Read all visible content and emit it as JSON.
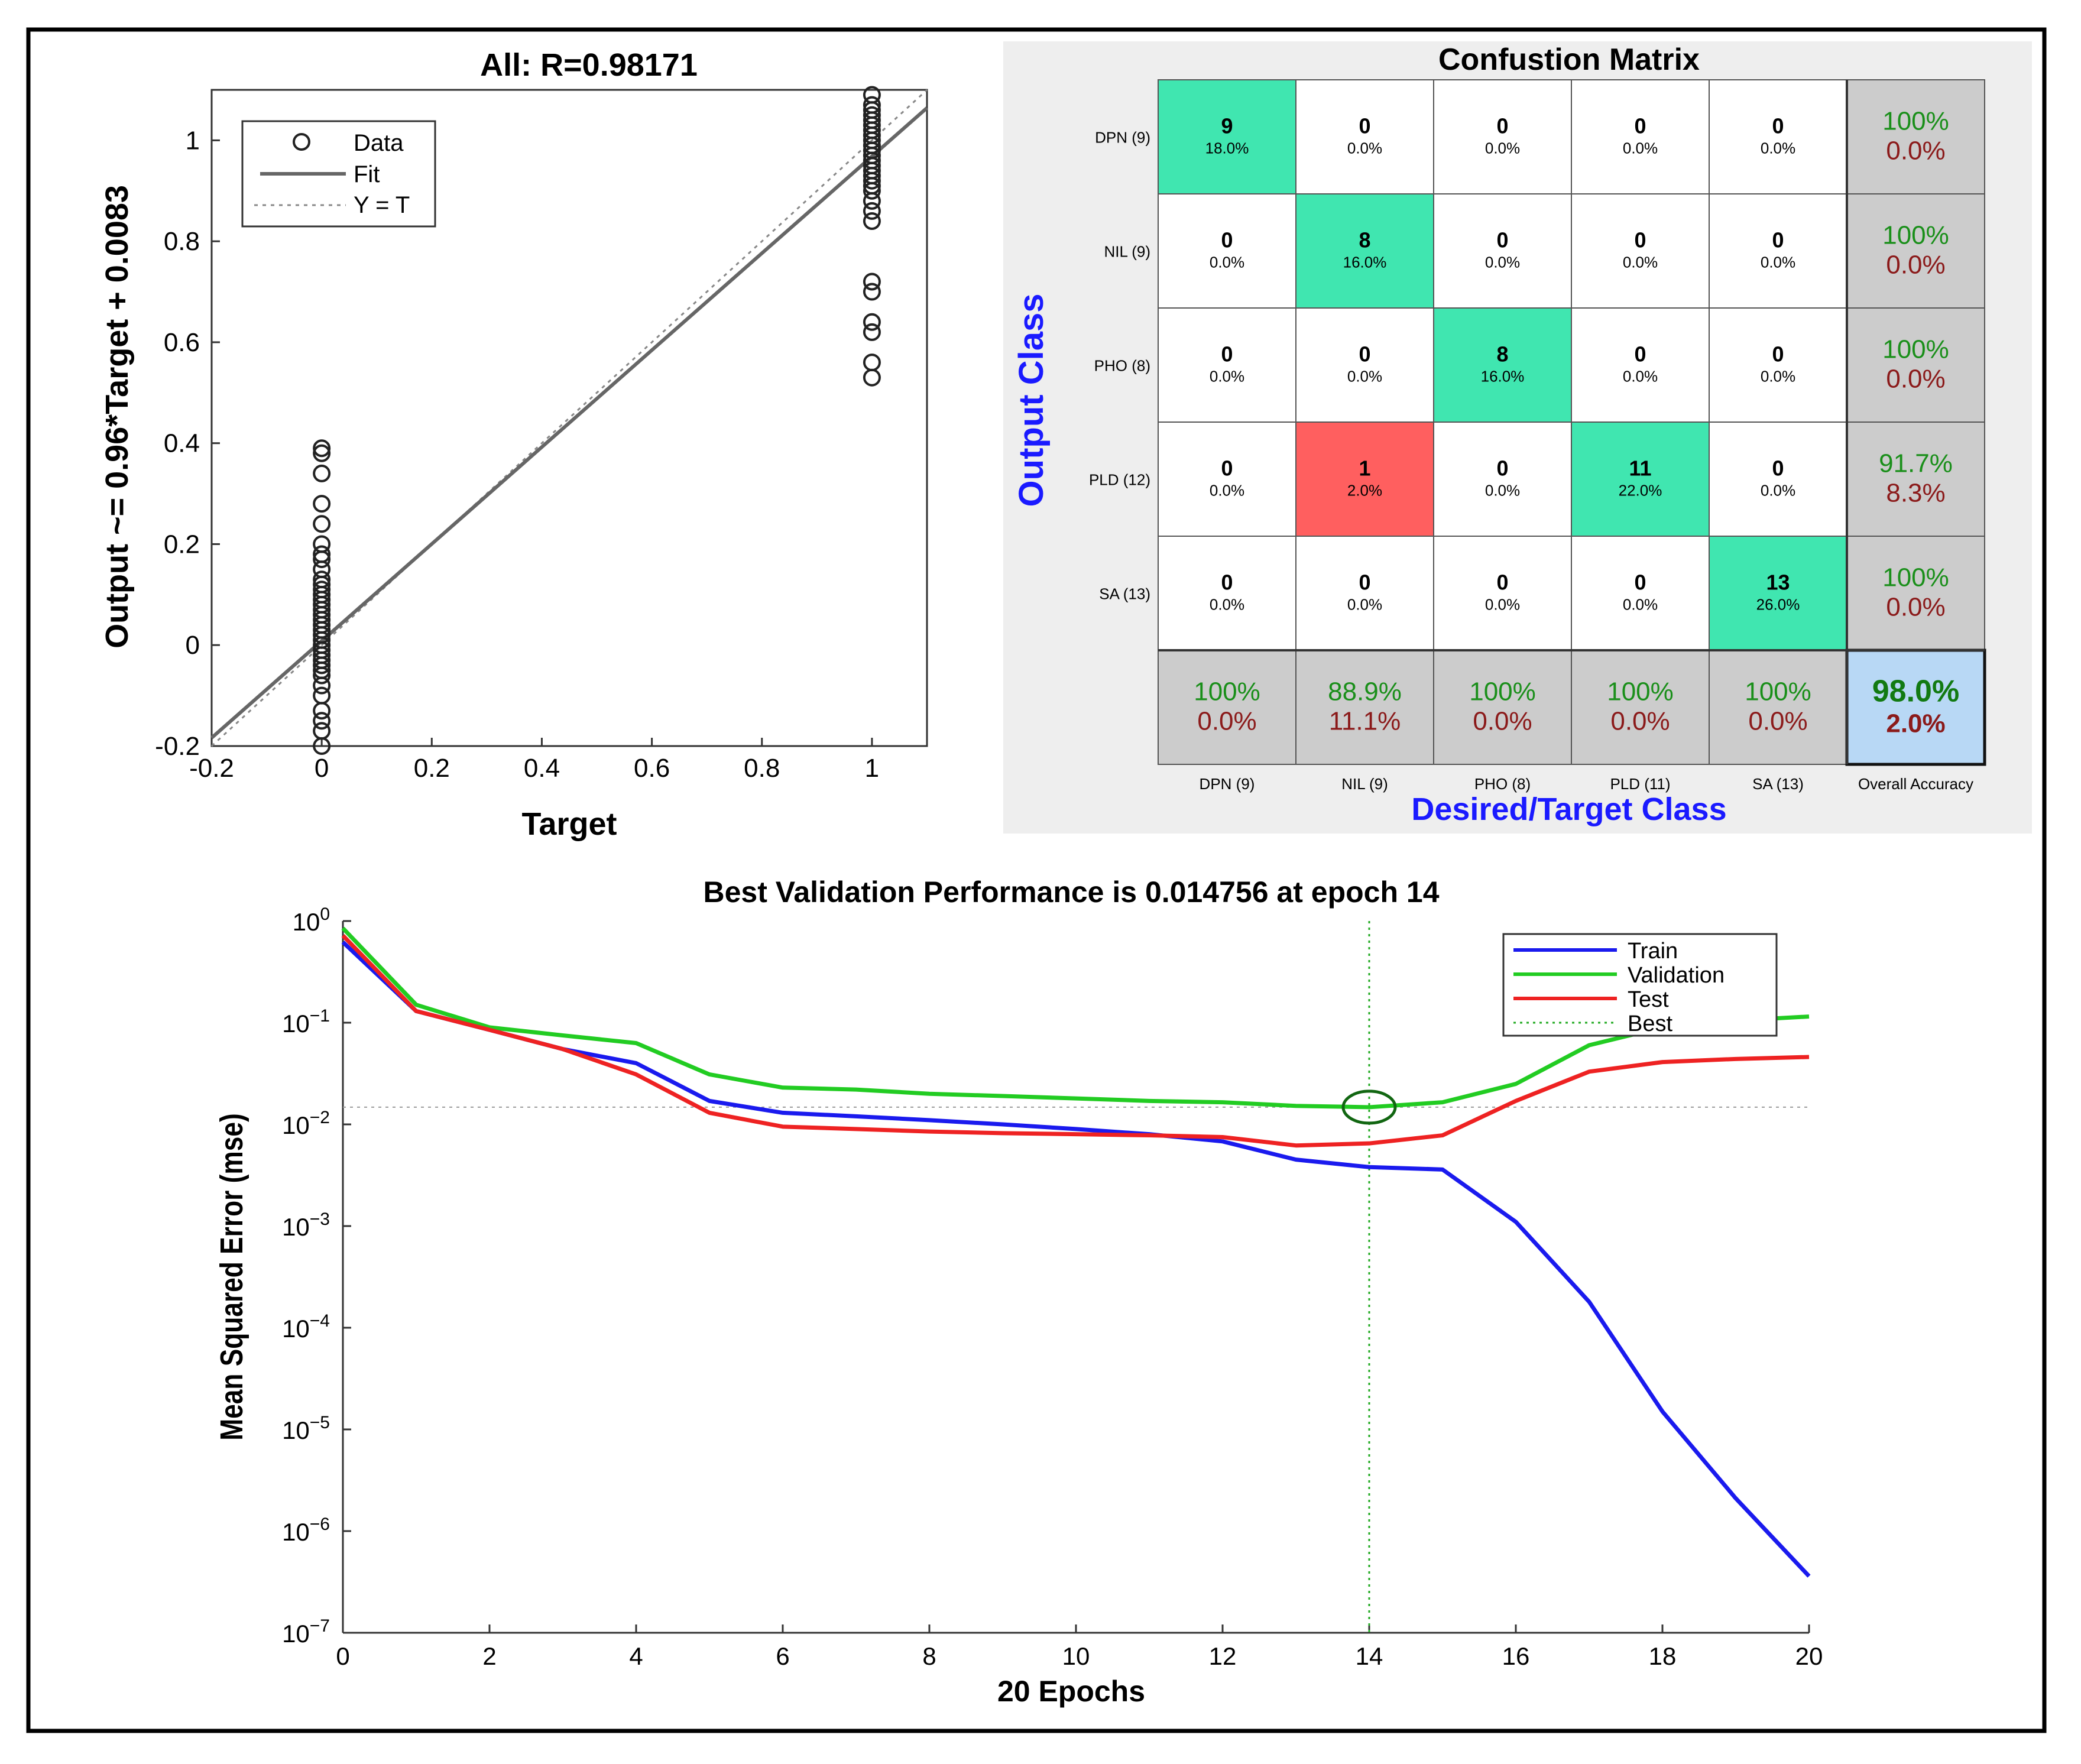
{
  "chart_data": [
    {
      "type": "scatter",
      "title": "All: R=0.98171",
      "xlabel": "Target",
      "ylabel": "Output ~= 0.96*Target + 0.0083",
      "xlim": [
        -0.2,
        1.1
      ],
      "ylim": [
        -0.2,
        1.1
      ],
      "xticks": [
        -0.2,
        0,
        0.2,
        0.4,
        0.6,
        0.8,
        1
      ],
      "yticks": [
        -0.2,
        0,
        0.2,
        0.4,
        0.6,
        0.8,
        1
      ],
      "xtick_labels": [
        "-0.2",
        "0",
        "0.2",
        "0.4",
        "0.6",
        "0.8",
        "1"
      ],
      "ytick_labels": [
        "-0.2",
        "0",
        "0.2",
        "0.4",
        "0.6",
        "0.8",
        "1"
      ],
      "legend": [
        "Data",
        "Fit",
        "Y = T"
      ],
      "legend_position": "top-left",
      "fit": {
        "slope": 0.96,
        "intercept": 0.0083
      },
      "points": [
        {
          "x": 0,
          "y": 0.39
        },
        {
          "x": 0,
          "y": 0.38
        },
        {
          "x": 0,
          "y": 0.34
        },
        {
          "x": 0,
          "y": 0.28
        },
        {
          "x": 0,
          "y": 0.24
        },
        {
          "x": 0,
          "y": 0.2
        },
        {
          "x": 0,
          "y": 0.18
        },
        {
          "x": 0,
          "y": 0.17
        },
        {
          "x": 0,
          "y": 0.15
        },
        {
          "x": 0,
          "y": 0.13
        },
        {
          "x": 0,
          "y": 0.12
        },
        {
          "x": 0,
          "y": 0.11
        },
        {
          "x": 0,
          "y": 0.1
        },
        {
          "x": 0,
          "y": 0.09
        },
        {
          "x": 0,
          "y": 0.08
        },
        {
          "x": 0,
          "y": 0.07
        },
        {
          "x": 0,
          "y": 0.06
        },
        {
          "x": 0,
          "y": 0.05
        },
        {
          "x": 0,
          "y": 0.04
        },
        {
          "x": 0,
          "y": 0.03
        },
        {
          "x": 0,
          "y": 0.02
        },
        {
          "x": 0,
          "y": 0.01
        },
        {
          "x": 0,
          "y": 0.0
        },
        {
          "x": 0,
          "y": -0.01
        },
        {
          "x": 0,
          "y": -0.02
        },
        {
          "x": 0,
          "y": -0.03
        },
        {
          "x": 0,
          "y": -0.04
        },
        {
          "x": 0,
          "y": -0.05
        },
        {
          "x": 0,
          "y": -0.06
        },
        {
          "x": 0,
          "y": -0.08
        },
        {
          "x": 0,
          "y": -0.1
        },
        {
          "x": 0,
          "y": -0.13
        },
        {
          "x": 0,
          "y": -0.15
        },
        {
          "x": 0,
          "y": -0.17
        },
        {
          "x": 0,
          "y": -0.2
        },
        {
          "x": 1,
          "y": 1.09
        },
        {
          "x": 1,
          "y": 1.07
        },
        {
          "x": 1,
          "y": 1.06
        },
        {
          "x": 1,
          "y": 1.05
        },
        {
          "x": 1,
          "y": 1.04
        },
        {
          "x": 1,
          "y": 1.03
        },
        {
          "x": 1,
          "y": 1.02
        },
        {
          "x": 1,
          "y": 1.01
        },
        {
          "x": 1,
          "y": 1.0
        },
        {
          "x": 1,
          "y": 0.99
        },
        {
          "x": 1,
          "y": 0.98
        },
        {
          "x": 1,
          "y": 0.97
        },
        {
          "x": 1,
          "y": 0.96
        },
        {
          "x": 1,
          "y": 0.95
        },
        {
          "x": 1,
          "y": 0.94
        },
        {
          "x": 1,
          "y": 0.93
        },
        {
          "x": 1,
          "y": 0.92
        },
        {
          "x": 1,
          "y": 0.91
        },
        {
          "x": 1,
          "y": 0.9
        },
        {
          "x": 1,
          "y": 0.88
        },
        {
          "x": 1,
          "y": 0.86
        },
        {
          "x": 1,
          "y": 0.84
        },
        {
          "x": 1,
          "y": 0.72
        },
        {
          "x": 1,
          "y": 0.7
        },
        {
          "x": 1,
          "y": 0.64
        },
        {
          "x": 1,
          "y": 0.62
        },
        {
          "x": 1,
          "y": 0.56
        },
        {
          "x": 1,
          "y": 0.53
        }
      ]
    },
    {
      "type": "heatmap",
      "title": "Confustion Matrix",
      "ylabel": "Output Class",
      "xlabel": "Desired/Target Class",
      "row_labels": [
        "DPN (9)",
        "NIL (9)",
        "PHO (8)",
        "PLD (12)",
        "SA (13)"
      ],
      "col_labels": [
        "DPN (9)",
        "NIL (9)",
        "PHO (8)",
        "PLD (11)",
        "SA (13)",
        "Overall Accuracy"
      ],
      "counts": [
        [
          "9",
          "0",
          "0",
          "0",
          "0"
        ],
        [
          "0",
          "8",
          "0",
          "0",
          "0"
        ],
        [
          "0",
          "0",
          "8",
          "0",
          "0"
        ],
        [
          "0",
          "1",
          "0",
          "11",
          "0"
        ],
        [
          "0",
          "0",
          "0",
          "0",
          "13"
        ]
      ],
      "percents": [
        [
          "18.0%",
          "0.0%",
          "0.0%",
          "0.0%",
          "0.0%"
        ],
        [
          "0.0%",
          "16.0%",
          "0.0%",
          "0.0%",
          "0.0%"
        ],
        [
          "0.0%",
          "0.0%",
          "16.0%",
          "0.0%",
          "0.0%"
        ],
        [
          "0.0%",
          "2.0%",
          "0.0%",
          "22.0%",
          "0.0%"
        ],
        [
          "0.0%",
          "0.0%",
          "0.0%",
          "0.0%",
          "26.0%"
        ]
      ],
      "row_accuracy": [
        [
          "100%",
          "0.0%"
        ],
        [
          "100%",
          "0.0%"
        ],
        [
          "100%",
          "0.0%"
        ],
        [
          "91.7%",
          "8.3%"
        ],
        [
          "100%",
          "0.0%"
        ]
      ],
      "col_accuracy": [
        [
          "100%",
          "0.0%"
        ],
        [
          "88.9%",
          "11.1%"
        ],
        [
          "100%",
          "0.0%"
        ],
        [
          "100%",
          "0.0%"
        ],
        [
          "100%",
          "0.0%"
        ]
      ],
      "overall": [
        "98.0%",
        "2.0%"
      ],
      "colors": {
        "correct": "#40e6b0",
        "error": "#ff5f5f",
        "summary": "#cccccc",
        "overall": "#b8d8f5",
        "green_text": "#1a8f1a",
        "red_text": "#8b1a1a",
        "axis_label": "#1a1aff"
      }
    },
    {
      "type": "line",
      "title": "Best Validation Performance is 0.014756 at epoch 14",
      "xlabel": "20 Epochs",
      "ylabel": "Mean Squared Error  (mse)",
      "yscale": "log",
      "xlim": [
        0,
        20
      ],
      "ylim": [
        1e-07,
        1
      ],
      "xticks": [
        0,
        2,
        4,
        6,
        8,
        10,
        12,
        14,
        16,
        18,
        20
      ],
      "xtick_labels": [
        "0",
        "2",
        "4",
        "6",
        "8",
        "10",
        "12",
        "14",
        "16",
        "18",
        "20"
      ],
      "ytick_exponents": [
        "0",
        "-1",
        "-2",
        "-3",
        "-4",
        "-5",
        "-6",
        "-7"
      ],
      "ytick_base": "10",
      "best": {
        "epoch": 14,
        "value": 0.014756
      },
      "legend_position": "top-right",
      "x": [
        0,
        1,
        2,
        3,
        4,
        5,
        6,
        7,
        8,
        9,
        10,
        11,
        12,
        13,
        14,
        15,
        16,
        17,
        18,
        19,
        20
      ],
      "series": [
        {
          "name": "Train",
          "color": "#1a1aee",
          "values": [
            0.62,
            0.13,
            0.085,
            0.055,
            0.04,
            0.017,
            0.013,
            0.012,
            0.011,
            0.01,
            0.009,
            0.008,
            0.0068,
            0.0045,
            0.0038,
            0.0036,
            0.0011,
            0.00018,
            1.5e-05,
            2.1e-06,
            3.6e-07
          ]
        },
        {
          "name": "Validation",
          "color": "#22cc22",
          "values": [
            0.85,
            0.15,
            0.09,
            0.075,
            0.063,
            0.031,
            0.023,
            0.022,
            0.02,
            0.019,
            0.018,
            0.017,
            0.0165,
            0.0152,
            0.014756,
            0.0165,
            0.025,
            0.06,
            0.09,
            0.105,
            0.115
          ]
        },
        {
          "name": "Test",
          "color": "#ee2222",
          "values": [
            0.72,
            0.13,
            0.085,
            0.055,
            0.031,
            0.013,
            0.0095,
            0.009,
            0.0085,
            0.0082,
            0.008,
            0.0078,
            0.0075,
            0.0062,
            0.0065,
            0.0078,
            0.017,
            0.033,
            0.041,
            0.044,
            0.046
          ]
        }
      ],
      "best_legend": "Best"
    }
  ]
}
